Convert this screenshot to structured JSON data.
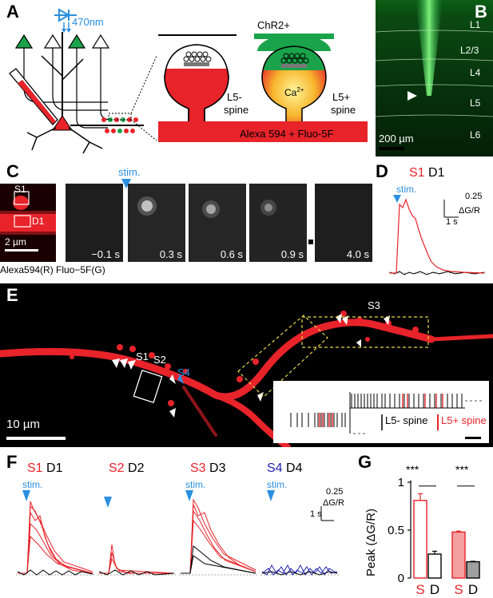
{
  "panels": {
    "A": {
      "label": "A",
      "wavelength": "470nm",
      "chr2": "ChR2+",
      "l5_minus": [
        "L5-",
        "spine"
      ],
      "l5_plus": [
        "L5+",
        "spine"
      ],
      "ca": "Ca",
      "ca_sup": "2+",
      "dye": "Alexa 594 + Fluo-5F"
    },
    "B": {
      "label": "B",
      "layers": [
        "L1",
        "L2/3",
        "L4",
        "L5",
        "L6"
      ],
      "scalebar": "200 µm"
    },
    "C": {
      "label": "C",
      "stim": "stim.",
      "roi_s1": "S1",
      "roi_d1": "D1",
      "scalebar": "2 µm",
      "caption": "Alexa594(R) Fluo−5F(G)",
      "times": [
        "−0.1 s",
        "0.3 s",
        "0.6 s",
        "0.9 s",
        "4.0 s"
      ]
    },
    "D": {
      "label": "D",
      "s": "S1",
      "d": "D1",
      "stim": "stim.",
      "scale_y": "0.25",
      "scale_y_unit": "ΔG/R",
      "scale_x": "1 s"
    },
    "E": {
      "label": "E",
      "spines": [
        "S1",
        "S2",
        "S3"
      ],
      "s4": "S4",
      "scalebar": "10 µm",
      "legend_minus": "L5- spine",
      "legend_plus": "L5+ spine"
    },
    "F": {
      "label": "F",
      "stim": "stim.",
      "scale_y": "0.25",
      "scale_y_unit": "ΔG/R",
      "scale_x": "1 s",
      "groups": [
        {
          "s": "S1",
          "d": "D1"
        },
        {
          "s": "S2",
          "d": "D2"
        },
        {
          "s": "S3",
          "d": "D3"
        },
        {
          "s": "S4",
          "d": "D4"
        }
      ]
    },
    "G": {
      "label": "G",
      "ylabel": "Peak (ΔG/R)",
      "sig1": "***",
      "sig2": "***",
      "xlabels": [
        "S",
        "D",
        "S",
        "D"
      ],
      "yticks": [
        "0",
        "0.5",
        "1"
      ]
    }
  },
  "colors": {
    "red": "#e8232a",
    "green": "#1aa34a",
    "blue": "#2b8fe0",
    "darkblue": "#1f24b0"
  },
  "chart_data": {
    "type": "bar",
    "categories": [
      "S",
      "D",
      "S",
      "D"
    ],
    "values": [
      0.81,
      0.25,
      0.48,
      0.17
    ],
    "errors": [
      0.07,
      0.03,
      0.01,
      0.005
    ],
    "fill": [
      "#ffffff",
      "#ffffff",
      "#f4a0a0",
      "#a0a0a0"
    ],
    "edge": [
      "#e8232a",
      "#000000",
      "#e8232a",
      "#000000"
    ],
    "ylabel": "Peak (ΔG/R)",
    "ylim": [
      0,
      1.05
    ]
  }
}
